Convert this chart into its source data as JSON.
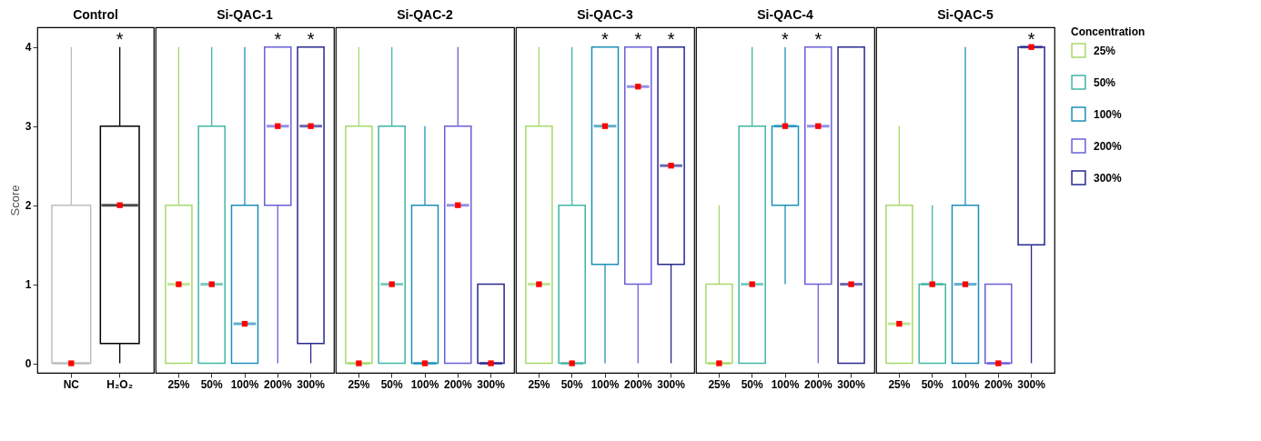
{
  "chart_data": [
    {
      "type": "box",
      "title": "Control",
      "ylabel": "Score",
      "categories": [
        "NC",
        "H₂O₂"
      ],
      "colors": [
        "#bdbdbd",
        "#000000"
      ],
      "ylim": [
        -0.12,
        4.25
      ],
      "yticks": [
        0,
        1,
        2,
        3,
        4
      ],
      "boxes": [
        {
          "low": 0,
          "q1": 0,
          "median": 0,
          "q3": 2,
          "high": 4,
          "mean": 0
        },
        {
          "low": 0,
          "q1": 0.25,
          "median": 2,
          "q3": 3,
          "high": 4,
          "mean": 2
        }
      ],
      "annotations": [
        {
          "text": "*",
          "x": "H₂O₂",
          "y": 4
        }
      ]
    },
    {
      "type": "box",
      "title": "Si-QAC-1",
      "tick_labels": "x",
      "categories": [
        "25%",
        "50%",
        "100%",
        "200%",
        "300%"
      ],
      "colors": [
        "#a6d96a",
        "#41b6a4",
        "#1d8fb8",
        "#6a5fd8",
        "#28288f"
      ],
      "ylim": [
        -0.12,
        4.25
      ],
      "yticks": [
        0,
        1,
        2,
        3,
        4
      ],
      "boxes": [
        {
          "low": 0,
          "q1": 0,
          "median": 1,
          "q3": 2,
          "high": 4,
          "mean": 1
        },
        {
          "low": 0,
          "q1": 0,
          "median": 1,
          "q3": 3,
          "high": 4,
          "mean": 1
        },
        {
          "low": 0,
          "q1": 0,
          "median": 0.5,
          "q3": 2,
          "high": 4,
          "mean": 0.5
        },
        {
          "low": 0,
          "q1": 2,
          "median": 3,
          "q3": 4,
          "high": 4,
          "mean": 3
        },
        {
          "low": 0,
          "q1": 0.25,
          "median": 3,
          "q3": 4,
          "high": 4,
          "mean": 3
        }
      ],
      "annotations": [
        {
          "text": "*",
          "x": "200%",
          "y": 4
        },
        {
          "text": "*",
          "x": "300%",
          "y": 4
        }
      ]
    },
    {
      "type": "box",
      "title": "Si-QAC-2",
      "tick_labels": "x",
      "categories": [
        "25%",
        "50%",
        "100%",
        "200%",
        "300%"
      ],
      "colors": [
        "#a6d96a",
        "#41b6a4",
        "#1d8fb8",
        "#6a5fd8",
        "#28288f"
      ],
      "ylim": [
        -0.12,
        4.25
      ],
      "yticks": [
        0,
        1,
        2,
        3,
        4
      ],
      "boxes": [
        {
          "low": 0,
          "q1": 0,
          "median": 0,
          "q3": 3,
          "high": 4,
          "mean": 0
        },
        {
          "low": 0,
          "q1": 0,
          "median": 1,
          "q3": 3,
          "high": 4,
          "mean": 1
        },
        {
          "low": 0,
          "q1": 0,
          "median": 0,
          "q3": 2,
          "high": 3,
          "mean": 0
        },
        {
          "low": 0,
          "q1": 0,
          "median": 2,
          "q3": 3,
          "high": 4,
          "mean": 2
        },
        {
          "low": 0,
          "q1": 0,
          "median": 0,
          "q3": 1,
          "high": 1,
          "mean": 0
        }
      ]
    },
    {
      "type": "box",
      "title": "Si-QAC-3",
      "tick_labels": "x",
      "categories": [
        "25%",
        "50%",
        "100%",
        "200%",
        "300%"
      ],
      "colors": [
        "#a6d96a",
        "#41b6a4",
        "#1d8fb8",
        "#6a5fd8",
        "#28288f"
      ],
      "ylim": [
        -0.12,
        4.25
      ],
      "yticks": [
        0,
        1,
        2,
        3,
        4
      ],
      "boxes": [
        {
          "low": 0,
          "q1": 0,
          "median": 1,
          "q3": 3,
          "high": 4,
          "mean": 1
        },
        {
          "low": 0,
          "q1": 0,
          "median": 0,
          "q3": 2,
          "high": 4,
          "mean": 0
        },
        {
          "low": 0,
          "q1": 1.25,
          "median": 3,
          "q3": 4,
          "high": 4,
          "mean": 3
        },
        {
          "low": 0,
          "q1": 1,
          "median": 3.5,
          "q3": 4,
          "high": 4,
          "mean": 3.5
        },
        {
          "low": 0,
          "q1": 1.25,
          "median": 2.5,
          "q3": 4,
          "high": 4,
          "mean": 2.5
        }
      ],
      "annotations": [
        {
          "text": "*",
          "x": "100%",
          "y": 4
        },
        {
          "text": "*",
          "x": "200%",
          "y": 4
        },
        {
          "text": "*",
          "x": "300%",
          "y": 4
        }
      ]
    },
    {
      "type": "box",
      "title": "Si-QAC-4",
      "tick_labels": "x",
      "categories": [
        "25%",
        "50%",
        "100%",
        "200%",
        "300%"
      ],
      "colors": [
        "#a6d96a",
        "#41b6a4",
        "#1d8fb8",
        "#6a5fd8",
        "#28288f"
      ],
      "ylim": [
        -0.12,
        4.25
      ],
      "yticks": [
        0,
        1,
        2,
        3,
        4
      ],
      "boxes": [
        {
          "low": 0,
          "q1": 0,
          "median": 0,
          "q3": 1,
          "high": 2,
          "mean": 0
        },
        {
          "low": 0,
          "q1": 0,
          "median": 1,
          "q3": 3,
          "high": 4,
          "mean": 1
        },
        {
          "low": 1,
          "q1": 2,
          "median": 3,
          "q3": 3,
          "high": 4,
          "mean": 3
        },
        {
          "low": 0,
          "q1": 1,
          "median": 3,
          "q3": 4,
          "high": 4,
          "mean": 3
        },
        {
          "low": 0,
          "q1": 0,
          "median": 1,
          "q3": 4,
          "high": 4,
          "mean": 1
        }
      ],
      "annotations": [
        {
          "text": "*",
          "x": "100%",
          "y": 4
        },
        {
          "text": "*",
          "x": "200%",
          "y": 4
        }
      ]
    },
    {
      "type": "box",
      "title": "Si-QAC-5",
      "tick_labels": "x",
      "legend": "right",
      "legend_title": "Concentration",
      "categories": [
        "25%",
        "50%",
        "100%",
        "200%",
        "300%"
      ],
      "ylim": [
        -0.12,
        4.25
      ],
      "yticks": [
        0,
        1,
        2,
        3,
        4
      ],
      "series": [
        {
          "name": "25%",
          "color": "#a6d96a",
          "boxes": [
            {
              "low": 0,
              "q1": 0,
              "median": 0.5,
              "q3": 2,
              "high": 3,
              "mean": 0.5
            },
            null,
            null,
            null,
            null
          ]
        },
        {
          "name": "50%",
          "color": "#41b6a4",
          "boxes": [
            null,
            {
              "low": 0,
              "q1": 0,
              "median": 1,
              "q3": 1,
              "high": 2,
              "mean": 1
            },
            null,
            null,
            null
          ]
        },
        {
          "name": "100%",
          "color": "#1d8fb8",
          "boxes": [
            null,
            null,
            {
              "low": 0,
              "q1": 0,
              "median": 1,
              "q3": 2,
              "high": 4,
              "mean": 1
            },
            null,
            null
          ]
        },
        {
          "name": "200%",
          "color": "#6a5fd8",
          "boxes": [
            null,
            null,
            null,
            {
              "low": 0,
              "q1": 0,
              "median": 0,
              "q3": 1,
              "high": 1,
              "mean": 0
            },
            null
          ]
        },
        {
          "name": "300%",
          "color": "#28288f",
          "boxes": [
            null,
            null,
            null,
            null,
            {
              "low": 0,
              "q1": 1.5,
              "median": 4,
              "q3": 4,
              "high": 4,
              "mean": 4
            }
          ]
        }
      ],
      "annotations": [
        {
          "text": "*",
          "x": "300%",
          "y": 4
        }
      ]
    }
  ]
}
